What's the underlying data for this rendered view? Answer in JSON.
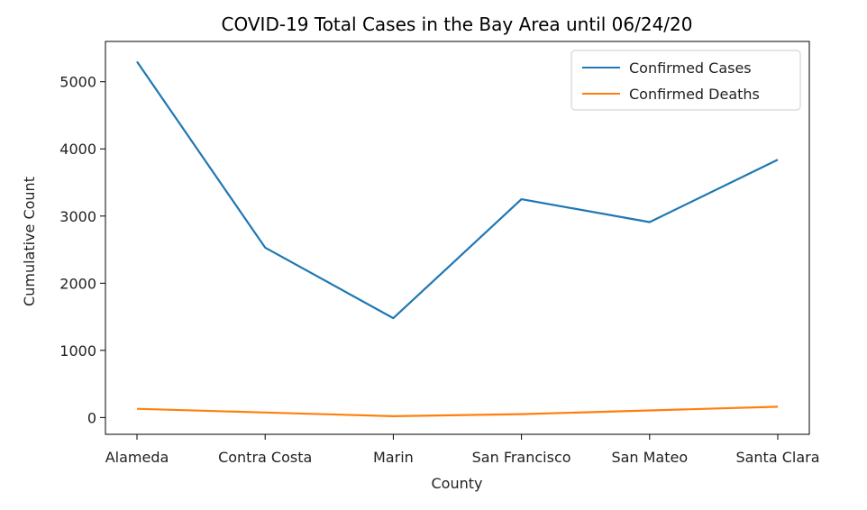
{
  "chart_data": {
    "type": "line",
    "title": "COVID-19 Total Cases in the Bay Area until 06/24/20",
    "xlabel": "County",
    "ylabel": "Cumulative Count",
    "categories": [
      "Alameda",
      "Contra Costa",
      "Marin",
      "San Francisco",
      "San Mateo",
      "Santa Clara"
    ],
    "ylim": [
      -250,
      5600
    ],
    "yticks": [
      0,
      1000,
      2000,
      3000,
      4000,
      5000
    ],
    "grid": false,
    "legend_position": "top-right",
    "series": [
      {
        "name": "Confirmed Cases",
        "color": "#1f77b4",
        "values": [
          5300,
          2530,
          1480,
          3250,
          2910,
          3840
        ]
      },
      {
        "name": "Confirmed Deaths",
        "color": "#ff7f0e",
        "values": [
          130,
          75,
          20,
          50,
          105,
          160
        ]
      }
    ]
  }
}
